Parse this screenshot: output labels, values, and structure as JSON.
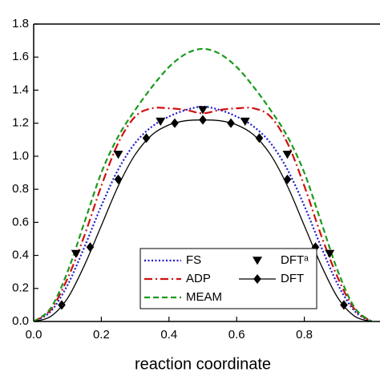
{
  "chart_data": {
    "type": "line",
    "xlabel": "reaction coordinate",
    "xlim": [
      0,
      1
    ],
    "ylim": [
      0,
      1.8
    ],
    "xticks": [
      {
        "value": 0,
        "label": "0.0"
      },
      0.2,
      0.4,
      0.6,
      0.8
    ],
    "yticks": [
      {
        "value": 0,
        "label": "0.0"
      },
      0.2,
      0.4,
      0.6,
      0.8,
      {
        "value": 1,
        "label": "1.0"
      },
      1.2,
      1.4,
      1.6,
      1.8
    ],
    "legend": "bottom-center",
    "series": [
      {
        "name": "FS",
        "color": "#1a1acc",
        "style": "dotted",
        "x": [
          0,
          0.05,
          0.1,
          0.15,
          0.2,
          0.25,
          0.3,
          0.35,
          0.4,
          0.45,
          0.5,
          0.55,
          0.6,
          0.65,
          0.7,
          0.75,
          0.8,
          0.85,
          0.9,
          0.95,
          1
        ],
        "values": [
          0,
          0.06,
          0.22,
          0.45,
          0.7,
          0.92,
          1.08,
          1.18,
          1.24,
          1.28,
          1.3,
          1.28,
          1.24,
          1.18,
          1.08,
          0.92,
          0.7,
          0.45,
          0.22,
          0.06,
          0
        ]
      },
      {
        "name": "ADP",
        "color": "#d01010",
        "style": "dashdot",
        "x": [
          0,
          0.05,
          0.1,
          0.15,
          0.2,
          0.25,
          0.3,
          0.35,
          0.4,
          0.45,
          0.5,
          0.55,
          0.6,
          0.65,
          0.7,
          0.75,
          0.8,
          0.85,
          0.9,
          0.95,
          1
        ],
        "values": [
          0,
          0.07,
          0.26,
          0.52,
          0.82,
          1.08,
          1.24,
          1.29,
          1.29,
          1.28,
          1.26,
          1.28,
          1.29,
          1.29,
          1.24,
          1.08,
          0.82,
          0.52,
          0.26,
          0.07,
          0
        ]
      },
      {
        "name": "MEAM",
        "color": "#1a9a1a",
        "style": "dashed",
        "x": [
          0,
          0.05,
          0.1,
          0.15,
          0.2,
          0.25,
          0.3,
          0.35,
          0.4,
          0.45,
          0.5,
          0.55,
          0.6,
          0.65,
          0.7,
          0.75,
          0.8,
          0.85,
          0.9,
          0.95,
          1
        ],
        "values": [
          0,
          0.08,
          0.3,
          0.6,
          0.9,
          1.12,
          1.28,
          1.42,
          1.54,
          1.62,
          1.65,
          1.62,
          1.54,
          1.42,
          1.28,
          1.12,
          0.9,
          0.6,
          0.3,
          0.08,
          0
        ]
      },
      {
        "name": "DFTᵃ",
        "color": "#000000",
        "marker": "triangle",
        "x": [
          0.125,
          0.25,
          0.375,
          0.5,
          0.625,
          0.75,
          0.875
        ],
        "values": [
          0.41,
          1.01,
          1.21,
          1.28,
          1.21,
          1.01,
          0.41
        ]
      },
      {
        "name": "DFT",
        "color": "#000000",
        "style": "solid",
        "x": [
          0,
          0.05,
          0.1,
          0.15,
          0.2,
          0.25,
          0.3,
          0.35,
          0.4,
          0.45,
          0.5,
          0.55,
          0.6,
          0.65,
          0.7,
          0.75,
          0.8,
          0.85,
          0.9,
          0.95,
          1
        ],
        "values": [
          0,
          0.03,
          0.14,
          0.34,
          0.58,
          0.82,
          1.01,
          1.13,
          1.19,
          1.215,
          1.22,
          1.215,
          1.19,
          1.13,
          1.01,
          0.82,
          0.58,
          0.34,
          0.14,
          0.03,
          0
        ],
        "markers": {
          "marker": "diamond",
          "x": [
            0.083,
            0.167,
            0.25,
            0.333,
            0.417,
            0.5,
            0.583,
            0.667,
            0.75,
            0.833,
            0.917
          ],
          "values": [
            0.1,
            0.45,
            0.86,
            1.11,
            1.2,
            1.22,
            1.2,
            1.11,
            0.86,
            0.45,
            0.1
          ]
        }
      }
    ]
  }
}
